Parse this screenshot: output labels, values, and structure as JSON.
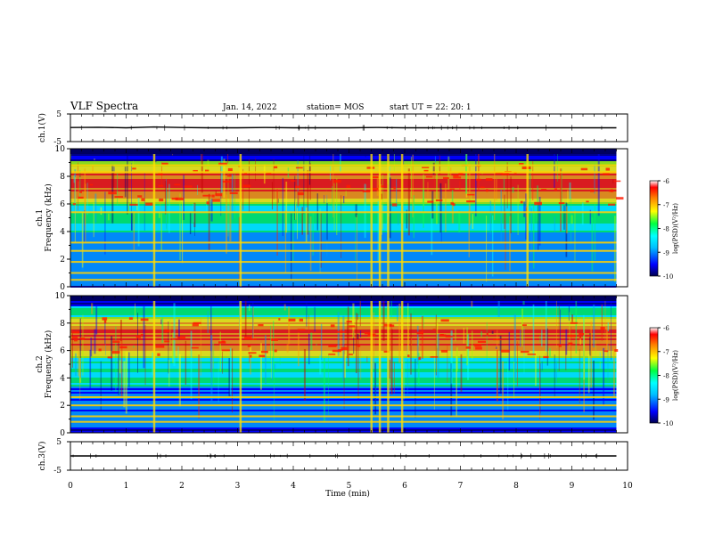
{
  "header": {
    "title": "VLF Spectra",
    "date": "Jan. 14, 2022",
    "station": "station= MOS",
    "start": "start  UT =   22: 20: 1"
  },
  "chart_data": [
    {
      "type": "line",
      "panel": "ch1_waveform",
      "ylabel": "ch.1(V)",
      "ylim": [
        -5,
        5
      ],
      "yticks": [
        "5",
        "-5"
      ],
      "xlim": [
        0,
        10
      ],
      "series": [
        {
          "x": [
            0,
            0.5,
            1,
            1.5,
            2,
            2.5,
            3,
            3.5,
            4,
            4.5,
            5,
            5.5,
            6,
            6.5,
            7,
            7.5,
            8,
            8.5,
            9,
            9.5,
            9.8
          ],
          "values": [
            0.1,
            0.2,
            0.0,
            0.3,
            0.1,
            0.0,
            0.0,
            0.1,
            0.0,
            0.0,
            0.0,
            0.1,
            0.0,
            0.0,
            0.0,
            0.0,
            0.0,
            0.0,
            0.0,
            0.0,
            0.0
          ]
        }
      ]
    },
    {
      "type": "heatmap",
      "panel": "ch1_spectrogram",
      "ylabel": "ch.1 Frequency (kHz)",
      "ylim": [
        0,
        10
      ],
      "yticks": [
        "0",
        "2",
        "4",
        "6",
        "8",
        "10"
      ],
      "xlim": [
        0,
        10
      ],
      "colorbar": {
        "label": "log(PSD)(V²/Hz)",
        "range": [
          -10,
          -6
        ],
        "ticks": [
          "-6",
          "-7",
          "-8",
          "-9",
          "-10"
        ]
      },
      "bands_khz": [
        0.5,
        1.0,
        1.8,
        2.6,
        3.2,
        5.4,
        8.3,
        8.8
      ],
      "bursts_min": [
        1.5,
        3.05,
        5.4,
        5.55,
        5.7,
        5.95,
        8.2
      ],
      "emission_khz": [
        6.0,
        9.0
      ]
    },
    {
      "type": "heatmap",
      "panel": "ch2_spectrogram",
      "ylabel": "ch.2 Frequency (kHz)",
      "ylim": [
        0,
        10
      ],
      "yticks": [
        "0",
        "2",
        "4",
        "6",
        "8",
        "10"
      ],
      "xlim": [
        0,
        10
      ],
      "colorbar": {
        "label": "log(PSD)(V²/Hz)",
        "range": [
          -10,
          -6
        ],
        "ticks": [
          "-6",
          "-7",
          "-8",
          "-9",
          "-10"
        ]
      },
      "bands_khz": [
        0.8,
        1.2,
        2.0,
        2.6
      ],
      "bursts_min": [
        1.5,
        3.05,
        5.4,
        5.55,
        5.7,
        5.95
      ],
      "emission_khz": [
        5.5,
        8.5
      ]
    },
    {
      "type": "line",
      "panel": "ch3_waveform",
      "ylabel": "ch.3(V)",
      "ylim": [
        -5,
        5
      ],
      "yticks": [
        "5",
        "-5"
      ],
      "xlim": [
        0,
        10
      ],
      "xticks": [
        "0",
        "1",
        "2",
        "3",
        "4",
        "5",
        "6",
        "7",
        "8",
        "9",
        "10"
      ],
      "xlabel": "Time  (min)",
      "series": [
        {
          "x": [
            0,
            1,
            2,
            3,
            4,
            5,
            6,
            7,
            8,
            9,
            9.8
          ],
          "values": [
            0,
            0,
            0,
            0,
            0,
            0,
            0,
            0,
            0,
            0,
            0
          ]
        }
      ]
    }
  ],
  "palette": [
    "#00007a",
    "#0000ff",
    "#00a0ff",
    "#00ffff",
    "#00ff60",
    "#a0ff00",
    "#ffff00",
    "#ffa000",
    "#ff2000",
    "#c00000"
  ]
}
